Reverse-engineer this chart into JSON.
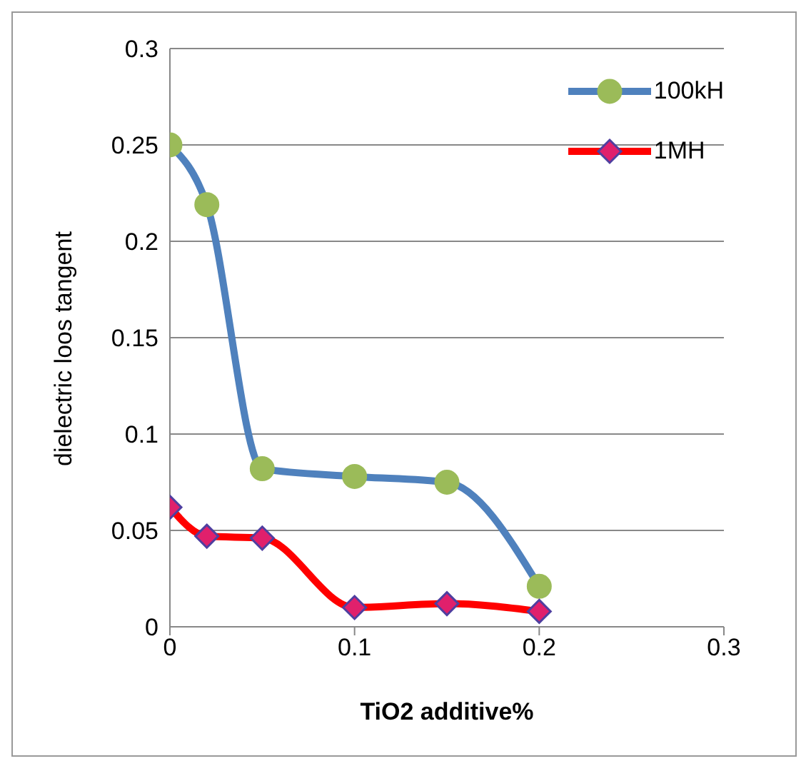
{
  "chart_data": {
    "type": "line",
    "xlabel": "TiO2 additive%",
    "ylabel": "dielectric loos tangent",
    "x": [
      0,
      0.02,
      0.05,
      0.1,
      0.15,
      0.2
    ],
    "series": [
      {
        "name": "100kH",
        "color": "#4f81bd",
        "marker": "circle",
        "values": [
          0.25,
          0.219,
          0.082,
          0.078,
          0.075,
          0.021
        ]
      },
      {
        "name": "1MH",
        "color": "#ff0000",
        "marker": "diamond",
        "values": [
          0.062,
          0.047,
          0.046,
          0.01,
          0.012,
          0.008
        ]
      }
    ],
    "xlim": [
      0,
      0.3
    ],
    "xticks": [
      0,
      0.1,
      0.2,
      0.3
    ],
    "ylim": [
      0,
      0.3
    ],
    "yticks": [
      0,
      0.05,
      0.1,
      0.15,
      0.2,
      0.25,
      0.3
    ],
    "grid": "y",
    "legend": "top right"
  }
}
